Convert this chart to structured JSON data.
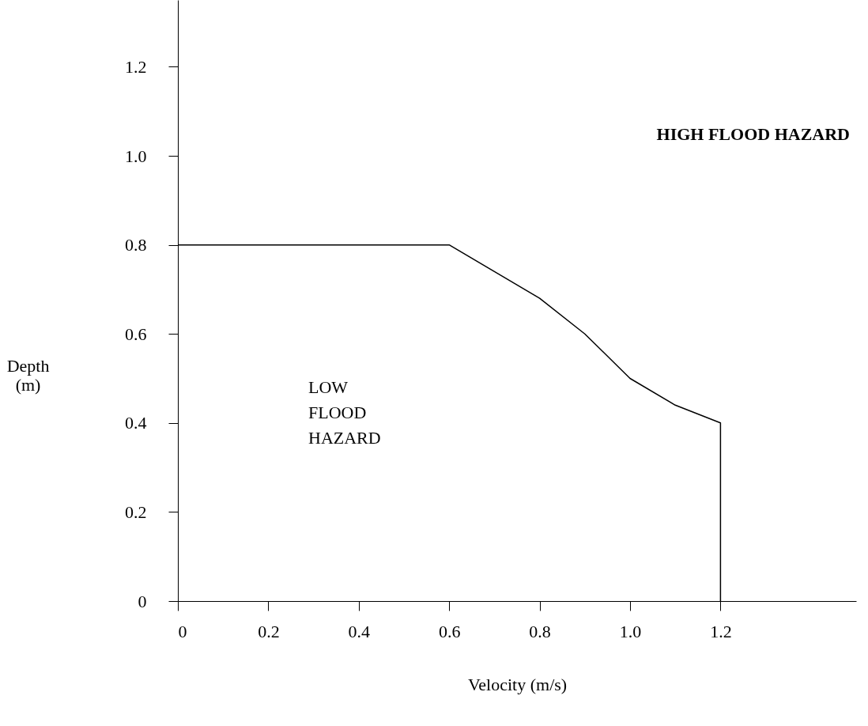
{
  "chart_data": {
    "type": "line",
    "xlabel": "Velocity (m/s)",
    "ylabel": "Depth (m)",
    "xlim": [
      0,
      1.5
    ],
    "ylim": [
      0,
      1.35
    ],
    "xticks": [
      0,
      0.2,
      0.4,
      0.6,
      0.8,
      {
        "value": 1,
        "label": "1.0"
      },
      1.2
    ],
    "yticks": [
      0,
      0.2,
      0.4,
      0.6,
      0.8,
      {
        "value": 1,
        "label": "1.0"
      },
      1.2
    ],
    "series": [
      {
        "color": "#000000",
        "x": [
          0,
          0.6,
          0.7,
          0.8,
          0.9,
          1.0,
          1.1,
          1.2,
          1.2
        ],
        "values": [
          0.8,
          0.8,
          0.74,
          0.68,
          0.6,
          0.5,
          0.44,
          0.4,
          0
        ]
      }
    ],
    "annotations": [
      "HIGH FLOOD HAZARD",
      "LOW FLOOD HAZARD"
    ],
    "grid": false,
    "marker": "none",
    "line_style": "solid"
  }
}
